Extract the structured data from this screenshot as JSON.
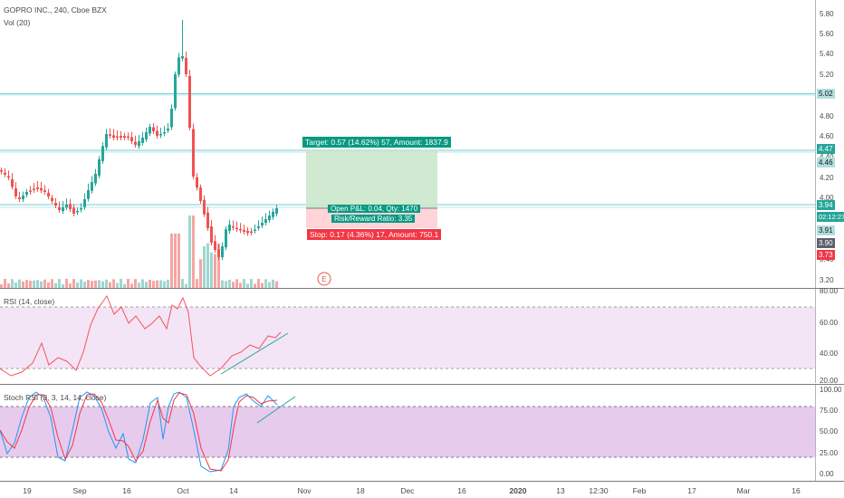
{
  "header": {
    "title": "GOPRO INC., 240, Cboe BZX",
    "volume_label": "Vol (20)"
  },
  "price_axis": {
    "ticks": [
      "5.80",
      "5.60",
      "5.40",
      "5.20",
      "4.80",
      "4.60",
      "4.40",
      "4.20",
      "4.00",
      "3.40",
      "3.20"
    ],
    "tags": [
      {
        "text": "5.02",
        "bg": "#b2dfdb",
        "fg": "#131722"
      },
      {
        "text": "4.47",
        "bg": "#26a69a",
        "fg": "#ffffff"
      },
      {
        "text": "4.46",
        "bg": "#b2dfdb",
        "fg": "#131722"
      },
      {
        "text": "3.94",
        "bg": "#26a69a",
        "fg": "#ffffff"
      },
      {
        "text": "02:12:27",
        "bg": "#26a69a",
        "fg": "#ffffff"
      },
      {
        "text": "3.91",
        "bg": "#b2dfdb",
        "fg": "#131722"
      },
      {
        "text": "3.90",
        "bg": "#5d606b",
        "fg": "#ffffff"
      },
      {
        "text": "3.73",
        "bg": "#f23645",
        "fg": "#ffffff"
      }
    ]
  },
  "position": {
    "target_label": "Target: 0.57 (14.62%) 57, Amount: 1837.9",
    "open_pl_label": "Open P&L: 0.04, Qty: 1470",
    "risk_reward_label": "Risk/Reward Ratio: 3.35",
    "stop_label": "Stop: 0.17 (4.36%) 17, Amount: 750.1"
  },
  "earnings_marker": "E",
  "rsi": {
    "label": "RSI (14, close)",
    "ticks": [
      "80.00",
      "60.00",
      "40.00",
      "20.00"
    ]
  },
  "stoch": {
    "label": "Stoch RSI (3, 3, 14, 14, close)",
    "ticks": [
      "100.00",
      "75.00",
      "50.00",
      "25.00",
      "0.00"
    ]
  },
  "time_axis": {
    "labels": [
      "19",
      "Sep",
      "16",
      "Oct",
      "14",
      "Nov",
      "18",
      "Dec",
      "16",
      "2020",
      "13",
      "12:30",
      "Feb",
      "17",
      "Mar",
      "16"
    ]
  },
  "colors": {
    "up": "#26a69a",
    "down": "#ef5350",
    "rsi_line": "#f7525f",
    "stoch_k": "#2196f3",
    "stoch_d": "#f23645",
    "band_fill": "#e1bee7"
  }
}
